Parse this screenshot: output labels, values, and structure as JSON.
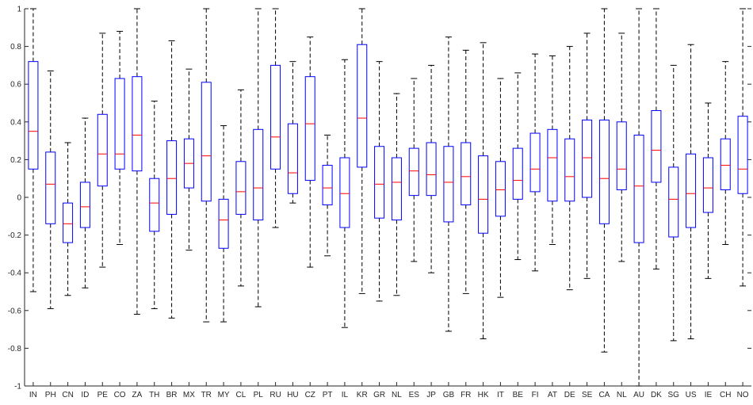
{
  "chart_data": {
    "type": "boxplot",
    "title": "",
    "xlabel": "",
    "ylabel": "",
    "ylim": [
      -1,
      1
    ],
    "yticks": [
      -1,
      -0.8,
      -0.6,
      -0.4,
      -0.2,
      0,
      0.2,
      0.4,
      0.6,
      0.8,
      1
    ],
    "ytick_labels": [
      "-1",
      "-0.8",
      "-0.6",
      "-0.4",
      "-0.2",
      "0",
      "0.2",
      "0.4",
      "0.6",
      "0.8",
      "1"
    ],
    "grid": false,
    "colors": {
      "box": "#0000ff",
      "median": "#ff0000",
      "whisker": "#000000",
      "axis": "#262626"
    },
    "categories": [
      "IN",
      "PH",
      "CN",
      "ID",
      "PE",
      "CO",
      "ZA",
      "TH",
      "BR",
      "MX",
      "TR",
      "MY",
      "CL",
      "PL",
      "RU",
      "HU",
      "CZ",
      "PT",
      "IL",
      "KR",
      "GR",
      "NL",
      "ES",
      "JP",
      "GB",
      "FR",
      "HK",
      "IT",
      "BE",
      "FI",
      "AT",
      "DE",
      "SE",
      "CA",
      "NL",
      "AU",
      "DK",
      "SG",
      "US",
      "IE",
      "CH",
      "NO"
    ],
    "boxes": [
      {
        "whislo": -0.5,
        "q1": 0.15,
        "med": 0.35,
        "q3": 0.72,
        "whishi": 1.0
      },
      {
        "whislo": -0.59,
        "q1": -0.14,
        "med": 0.07,
        "q3": 0.24,
        "whishi": 0.67
      },
      {
        "whislo": -0.52,
        "q1": -0.24,
        "med": -0.14,
        "q3": -0.03,
        "whishi": 0.29
      },
      {
        "whislo": -0.48,
        "q1": -0.16,
        "med": -0.05,
        "q3": 0.08,
        "whishi": 0.42
      },
      {
        "whislo": -0.37,
        "q1": 0.06,
        "med": 0.23,
        "q3": 0.44,
        "whishi": 0.87
      },
      {
        "whislo": -0.25,
        "q1": 0.15,
        "med": 0.23,
        "q3": 0.63,
        "whishi": 0.88
      },
      {
        "whislo": -0.62,
        "q1": 0.14,
        "med": 0.33,
        "q3": 0.64,
        "whishi": 1.0
      },
      {
        "whislo": -0.59,
        "q1": -0.18,
        "med": -0.03,
        "q3": 0.1,
        "whishi": 0.51
      },
      {
        "whislo": -0.64,
        "q1": -0.09,
        "med": 0.1,
        "q3": 0.3,
        "whishi": 0.83
      },
      {
        "whislo": -0.28,
        "q1": 0.05,
        "med": 0.18,
        "q3": 0.31,
        "whishi": 0.68
      },
      {
        "whislo": -0.66,
        "q1": -0.02,
        "med": 0.22,
        "q3": 0.61,
        "whishi": 1.0
      },
      {
        "whislo": -0.66,
        "q1": -0.27,
        "med": -0.12,
        "q3": -0.01,
        "whishi": 0.38
      },
      {
        "whislo": -0.47,
        "q1": -0.09,
        "med": 0.03,
        "q3": 0.19,
        "whishi": 0.57
      },
      {
        "whislo": -0.58,
        "q1": -0.12,
        "med": 0.05,
        "q3": 0.36,
        "whishi": 1.0
      },
      {
        "whislo": -0.16,
        "q1": 0.15,
        "med": 0.32,
        "q3": 0.7,
        "whishi": 1.0
      },
      {
        "whislo": -0.03,
        "q1": 0.02,
        "med": 0.13,
        "q3": 0.39,
        "whishi": 0.72
      },
      {
        "whislo": -0.37,
        "q1": 0.09,
        "med": 0.39,
        "q3": 0.64,
        "whishi": 0.85
      },
      {
        "whislo": -0.31,
        "q1": -0.04,
        "med": 0.05,
        "q3": 0.17,
        "whishi": 0.33
      },
      {
        "whislo": -0.69,
        "q1": -0.16,
        "med": 0.02,
        "q3": 0.21,
        "whishi": 0.73
      },
      {
        "whislo": -0.51,
        "q1": 0.16,
        "med": 0.42,
        "q3": 0.81,
        "whishi": 1.0
      },
      {
        "whislo": -0.55,
        "q1": -0.11,
        "med": 0.07,
        "q3": 0.27,
        "whishi": 0.72
      },
      {
        "whislo": -0.52,
        "q1": -0.12,
        "med": 0.08,
        "q3": 0.21,
        "whishi": 0.55
      },
      {
        "whislo": -0.34,
        "q1": 0.01,
        "med": 0.14,
        "q3": 0.26,
        "whishi": 0.63
      },
      {
        "whislo": -0.4,
        "q1": 0.01,
        "med": 0.12,
        "q3": 0.29,
        "whishi": 0.7
      },
      {
        "whislo": -0.71,
        "q1": -0.13,
        "med": 0.08,
        "q3": 0.27,
        "whishi": 0.85
      },
      {
        "whislo": -0.51,
        "q1": -0.04,
        "med": 0.11,
        "q3": 0.29,
        "whishi": 0.78
      },
      {
        "whislo": -0.75,
        "q1": -0.19,
        "med": -0.01,
        "q3": 0.22,
        "whishi": 0.82
      },
      {
        "whislo": -0.53,
        "q1": -0.1,
        "med": 0.04,
        "q3": 0.19,
        "whishi": 0.63
      },
      {
        "whislo": -0.33,
        "q1": -0.01,
        "med": 0.09,
        "q3": 0.26,
        "whishi": 0.66
      },
      {
        "whislo": -0.39,
        "q1": 0.03,
        "med": 0.15,
        "q3": 0.34,
        "whishi": 0.76
      },
      {
        "whislo": -0.25,
        "q1": -0.02,
        "med": 0.21,
        "q3": 0.36,
        "whishi": 0.75
      },
      {
        "whislo": -0.49,
        "q1": -0.02,
        "med": 0.11,
        "q3": 0.31,
        "whishi": 0.8
      },
      {
        "whislo": -0.43,
        "q1": 0.0,
        "med": 0.21,
        "q3": 0.41,
        "whishi": 0.87
      },
      {
        "whislo": -0.82,
        "q1": -0.14,
        "med": 0.1,
        "q3": 0.41,
        "whishi": 1.0
      },
      {
        "whislo": -0.34,
        "q1": 0.04,
        "med": 0.15,
        "q3": 0.4,
        "whishi": 0.87
      },
      {
        "whislo": -1.0,
        "q1": -0.24,
        "med": 0.06,
        "q3": 0.33,
        "whishi": 1.0
      },
      {
        "whislo": -0.38,
        "q1": 0.08,
        "med": 0.25,
        "q3": 0.46,
        "whishi": 1.0
      },
      {
        "whislo": -0.76,
        "q1": -0.21,
        "med": -0.01,
        "q3": 0.16,
        "whishi": 0.7
      },
      {
        "whislo": -0.75,
        "q1": -0.16,
        "med": 0.02,
        "q3": 0.23,
        "whishi": 0.81
      },
      {
        "whislo": -0.43,
        "q1": -0.08,
        "med": 0.05,
        "q3": 0.21,
        "whishi": 0.5
      },
      {
        "whislo": -0.25,
        "q1": 0.04,
        "med": 0.17,
        "q3": 0.31,
        "whishi": 0.72
      },
      {
        "whislo": -0.47,
        "q1": 0.02,
        "med": 0.15,
        "q3": 0.43,
        "whishi": 1.0
      }
    ]
  }
}
